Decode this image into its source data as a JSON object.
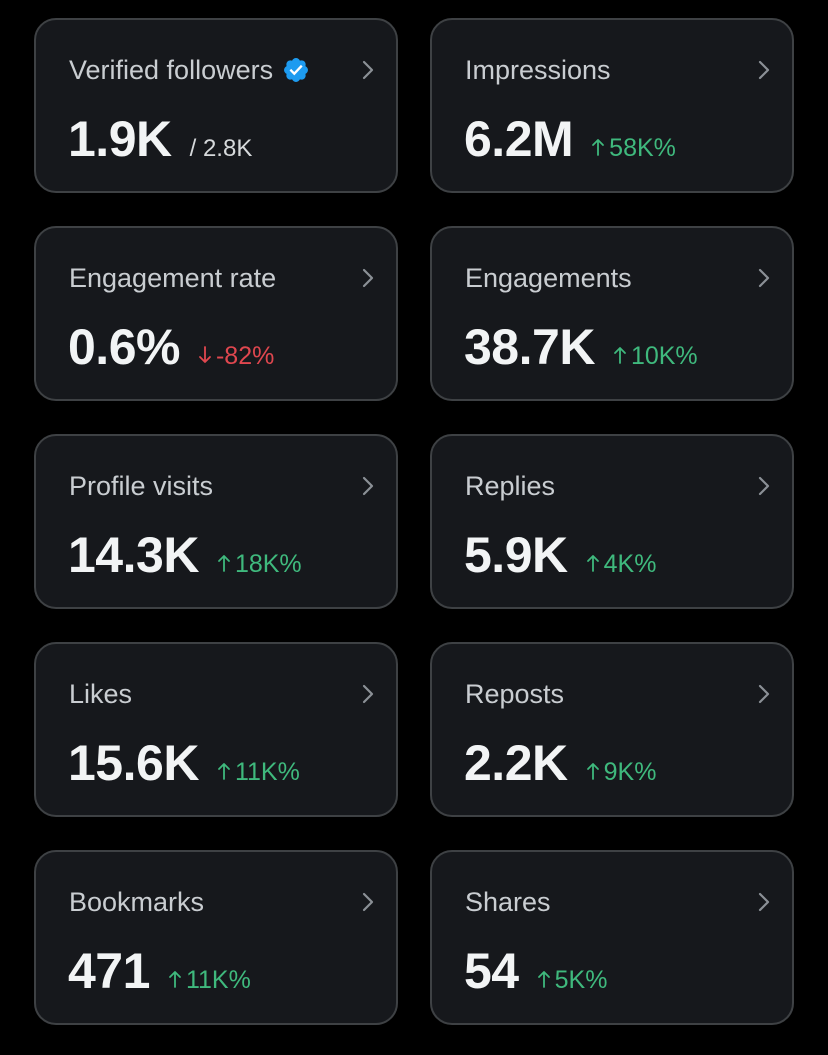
{
  "colors": {
    "background": "#000000",
    "card_background": "#16181c",
    "card_border": "#3e4144",
    "positive": "#3fb97d",
    "negative": "#e0474f",
    "verified_badge": "#1d9bf0"
  },
  "cards": [
    {
      "title": "Verified followers",
      "value": "1.9K",
      "total": "/ 2.8K",
      "icon": "verified-badge-icon"
    },
    {
      "title": "Impressions",
      "value": "6.2M",
      "change": "58K%",
      "direction": "up"
    },
    {
      "title": "Engagement rate",
      "value": "0.6%",
      "change": "-82%",
      "direction": "down"
    },
    {
      "title": "Engagements",
      "value": "38.7K",
      "change": "10K%",
      "direction": "up"
    },
    {
      "title": "Profile visits",
      "value": "14.3K",
      "change": "18K%",
      "direction": "up"
    },
    {
      "title": "Replies",
      "value": "5.9K",
      "change": "4K%",
      "direction": "up"
    },
    {
      "title": "Likes",
      "value": "15.6K",
      "change": "11K%",
      "direction": "up"
    },
    {
      "title": "Reposts",
      "value": "2.2K",
      "change": "9K%",
      "direction": "up"
    },
    {
      "title": "Bookmarks",
      "value": "471",
      "change": "11K%",
      "direction": "up"
    },
    {
      "title": "Shares",
      "value": "54",
      "change": "5K%",
      "direction": "up"
    }
  ]
}
